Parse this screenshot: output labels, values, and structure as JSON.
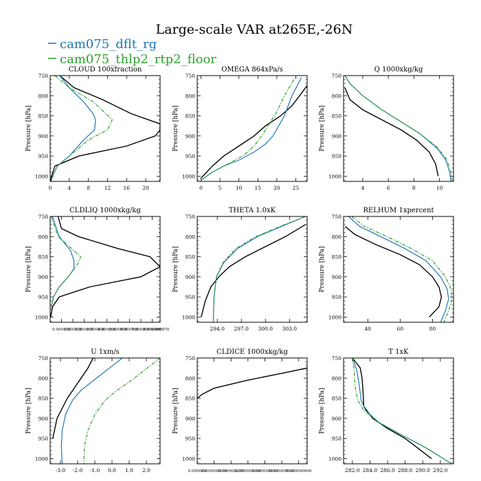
{
  "figure": {
    "title": "Large-scale VAR at265E,-26N",
    "legend": [
      {
        "name": "cam075_dflt_rg",
        "color": "#1f77b4",
        "dash": "solid"
      },
      {
        "name": "cam075_thlp2_rtp2_floor",
        "color": "#2ca02c",
        "dash": "dash-dot"
      }
    ],
    "ref_series_color": "#000000"
  },
  "chart_data": [
    {
      "type": "line",
      "title": "CLOUD  100xfraction",
      "ylabel": "Pressure [hPa]",
      "ylim": [
        1013,
        750
      ],
      "xlim": [
        0,
        23
      ],
      "yticks": [
        750,
        800,
        850,
        900,
        950,
        1000
      ],
      "ytick_labels": [
        "750",
        "800",
        "850",
        "900",
        "950",
        "1000"
      ],
      "xticks": [
        0,
        4,
        8,
        12,
        16,
        20
      ],
      "xtick_labels": [
        "0",
        "4",
        "8",
        "12",
        "16",
        "20"
      ],
      "series": [
        {
          "color": "#000000",
          "dash": "solid",
          "x": [
            2,
            5,
            11,
            17,
            23,
            23,
            22,
            16,
            6,
            1,
            0.3,
            0.1
          ],
          "y": [
            750,
            780,
            810,
            845,
            870,
            885,
            900,
            925,
            950,
            975,
            1000,
            1013
          ]
        },
        {
          "color": "#1f77b4",
          "dash": "solid",
          "x": [
            2,
            4,
            7,
            9,
            9.5,
            9.3,
            7,
            4,
            1.5,
            0.5,
            0.2
          ],
          "y": [
            750,
            780,
            815,
            845,
            860,
            885,
            910,
            950,
            975,
            1000,
            1013
          ]
        },
        {
          "color": "#2ca02c",
          "dash": "dash-dot",
          "x": [
            1,
            4,
            9,
            13,
            12,
            8,
            4,
            1.5,
            0.5,
            0.2
          ],
          "y": [
            750,
            780,
            815,
            860,
            885,
            910,
            950,
            975,
            1000,
            1013
          ]
        }
      ]
    },
    {
      "type": "line",
      "title": "OMEGA  864xPa/s",
      "ylabel": "Pressure [hPa]",
      "ylim": [
        1013,
        750
      ],
      "xlim": [
        -1,
        28
      ],
      "yticks": [
        750,
        800,
        850,
        900,
        950,
        1000
      ],
      "ytick_labels": [
        "750",
        "800",
        "850",
        "900",
        "950",
        "1000"
      ],
      "xticks": [
        0,
        5,
        10,
        15,
        20,
        25
      ],
      "xtick_labels": [
        "0",
        "5",
        "10",
        "15",
        "20",
        "25"
      ],
      "series": [
        {
          "color": "#000000",
          "dash": "solid",
          "x": [
            28,
            26,
            24,
            21,
            17,
            14,
            10,
            6,
            3,
            0
          ],
          "y": [
            775,
            800,
            825,
            850,
            875,
            900,
            925,
            950,
            975,
            1005
          ]
        },
        {
          "color": "#1f77b4",
          "dash": "solid",
          "x": [
            26.5,
            24,
            22,
            20.5,
            19,
            17,
            14,
            10,
            6,
            3,
            0
          ],
          "y": [
            755,
            800,
            850,
            875,
            900,
            920,
            940,
            960,
            975,
            990,
            1010
          ]
        },
        {
          "color": "#2ca02c",
          "dash": "dash-dot",
          "x": [
            24.5,
            22,
            20,
            18,
            16,
            14,
            11,
            7,
            3,
            0
          ],
          "y": [
            760,
            800,
            840,
            870,
            900,
            925,
            950,
            970,
            990,
            1010
          ]
        }
      ]
    },
    {
      "type": "line",
      "title": "Q  1000xkg/kg",
      "ylabel": "Pressure [hPa]",
      "ylim": [
        1013,
        750
      ],
      "xlim": [
        2.5,
        11.1
      ],
      "yticks": [
        750,
        800,
        850,
        900,
        950,
        1000
      ],
      "ytick_labels": [
        "750",
        "800",
        "850",
        "900",
        "950",
        "1000"
      ],
      "xticks": [
        4,
        6,
        8,
        10
      ],
      "xtick_labels": [
        "4",
        "6",
        "8",
        "10"
      ],
      "series": [
        {
          "color": "#000000",
          "dash": "solid",
          "x": [
            2.6,
            3,
            4,
            5.5,
            7,
            8.2,
            9.2,
            9.7,
            9.9
          ],
          "y": [
            780,
            810,
            835,
            860,
            885,
            910,
            940,
            970,
            1000
          ]
        },
        {
          "color": "#1f77b4",
          "dash": "solid",
          "x": [
            2.6,
            3,
            4,
            5.5,
            7,
            8.5,
            9.8,
            10.5,
            10.8,
            10.9
          ],
          "y": [
            750,
            770,
            800,
            835,
            865,
            895,
            930,
            960,
            990,
            1013
          ]
        },
        {
          "color": "#2ca02c",
          "dash": "dash-dot",
          "x": [
            2.6,
            3,
            4,
            5.5,
            7,
            8.5,
            9.9,
            10.6,
            10.9,
            11
          ],
          "y": [
            750,
            770,
            800,
            835,
            865,
            895,
            930,
            960,
            990,
            1013
          ]
        }
      ]
    },
    {
      "type": "line",
      "title": "CLDLIQ  1000xkg/kg",
      "ylabel": "Pressure [hPa]",
      "ylim": [
        1013,
        750
      ],
      "xlim": [
        0,
        0.00097
      ],
      "yticks": [
        750,
        800,
        850,
        900,
        950,
        1000
      ],
      "ytick_labels": [
        "750",
        "800",
        "850",
        "900",
        "950",
        "1000"
      ],
      "xticks": [
        0.0001,
        0.0002,
        0.0003,
        0.0004,
        0.0005,
        0.0006,
        0.0007,
        0.0008,
        0.0009,
        0.00097
      ],
      "xtick_labels": [
        "0.000100",
        "0.000200",
        "0.000300",
        "0.000400",
        "0.000500",
        "0.000600",
        "0.000700",
        "0.000800",
        "0.000900",
        "0.000970"
      ],
      "series": [
        {
          "color": "#000000",
          "dash": "solid",
          "x": [
            7e-05,
            0.0001,
            0.00025,
            0.0006,
            0.00088,
            0.00097,
            0.0008,
            0.00035,
            8e-05,
            2e-05,
            5e-06
          ],
          "y": [
            750,
            780,
            800,
            830,
            850,
            875,
            900,
            925,
            950,
            975,
            1000
          ]
        },
        {
          "color": "#1f77b4",
          "dash": "solid",
          "x": [
            2e-05,
            8e-05,
            0.00018,
            0.00021,
            0.00021,
            0.00016,
            8e-05,
            3e-05,
            1e-05
          ],
          "y": [
            750,
            800,
            835,
            860,
            880,
            900,
            925,
            950,
            975
          ]
        },
        {
          "color": "#2ca02c",
          "dash": "dash-dot",
          "x": [
            1e-05,
            7e-05,
            0.00019,
            0.00027,
            0.00024,
            0.00016,
            8e-05,
            3e-05,
            1e-05
          ],
          "y": [
            750,
            800,
            830,
            850,
            870,
            900,
            925,
            950,
            975
          ]
        }
      ]
    },
    {
      "type": "line",
      "title": "THETA  1.0xK",
      "ylabel": "Pressure [hPa]",
      "ylim": [
        1013,
        750
      ],
      "xlim": [
        291.5,
        305.2
      ],
      "yticks": [
        750,
        800,
        850,
        900,
        950,
        1000
      ],
      "ytick_labels": [
        "750",
        "800",
        "850",
        "900",
        "950",
        "1000"
      ],
      "xticks": [
        294.0,
        297.0,
        300.0,
        303.0
      ],
      "xtick_labels": [
        "294.0",
        "297.0",
        "300.0",
        "303.0"
      ],
      "series": [
        {
          "color": "#000000",
          "dash": "solid",
          "x": [
            305,
            302.5,
            300,
            297.5,
            295.5,
            294.2,
            293.2,
            292.5,
            292.0
          ],
          "y": [
            770,
            800,
            825,
            850,
            875,
            900,
            925,
            960,
            1000
          ]
        },
        {
          "color": "#1f77b4",
          "dash": "solid",
          "x": [
            305,
            302,
            299,
            296.5,
            294.8,
            293.9,
            293.6,
            293.5
          ],
          "y": [
            750,
            775,
            800,
            830,
            865,
            900,
            950,
            1013
          ]
        },
        {
          "color": "#2ca02c",
          "dash": "dash-dot",
          "x": [
            305,
            301.8,
            298.8,
            296.3,
            294.7,
            293.9,
            293.6,
            293.5
          ],
          "y": [
            750,
            775,
            800,
            830,
            865,
            900,
            950,
            1013
          ]
        }
      ]
    },
    {
      "type": "line",
      "title": "RELHUM  1xpercent",
      "ylabel": "Pressure [hPa]",
      "ylim": [
        1013,
        750
      ],
      "xlim": [
        25,
        93
      ],
      "yticks": [
        750,
        800,
        850,
        900,
        950,
        1000
      ],
      "ytick_labels": [
        "750",
        "800",
        "850",
        "900",
        "950",
        "1000"
      ],
      "xticks": [
        40,
        60,
        80
      ],
      "xtick_labels": [
        "40",
        "60",
        "80"
      ],
      "series": [
        {
          "color": "#000000",
          "dash": "solid",
          "x": [
            26,
            32,
            45,
            60,
            72,
            80,
            84,
            85.5,
            84,
            78
          ],
          "y": [
            775,
            795,
            820,
            845,
            870,
            900,
            925,
            950,
            975,
            1000
          ]
        },
        {
          "color": "#1f77b4",
          "dash": "solid",
          "x": [
            28,
            35,
            48,
            63,
            76,
            85,
            89,
            90,
            88,
            85
          ],
          "y": [
            750,
            775,
            800,
            830,
            860,
            900,
            930,
            955,
            985,
            1013
          ]
        },
        {
          "color": "#2ca02c",
          "dash": "dash-dot",
          "x": [
            30,
            38,
            52,
            67,
            80,
            88,
            91.5,
            92,
            90,
            87
          ],
          "y": [
            750,
            775,
            800,
            830,
            860,
            900,
            930,
            955,
            985,
            1013
          ]
        }
      ]
    },
    {
      "type": "line",
      "title": "U  1xm/s",
      "ylabel": "Pressure [hPa]",
      "ylim": [
        1013,
        750
      ],
      "xlim": [
        -3.6,
        2.8
      ],
      "yticks": [
        750,
        800,
        850,
        900,
        950,
        1000
      ],
      "ytick_labels": [
        "750",
        "800",
        "850",
        "900",
        "950",
        "1000"
      ],
      "xticks": [
        -3.0,
        -2.0,
        -1.0,
        0.0,
        1.0,
        2.0
      ],
      "xtick_labels": [
        "-3.0",
        "-2.0",
        "-1.0",
        "0.0",
        "1.0",
        "2.0"
      ],
      "series": [
        {
          "color": "#000000",
          "dash": "solid",
          "x": [
            -1.1,
            -1.4,
            -1.8,
            -2.2,
            -2.6,
            -2.9,
            -3.2,
            -3.45
          ],
          "y": [
            750,
            775,
            800,
            825,
            850,
            875,
            900,
            950
          ]
        },
        {
          "color": "#1f77b4",
          "dash": "solid",
          "x": [
            0.6,
            0,
            -0.6,
            -1.2,
            -1.8,
            -2.3,
            -2.7,
            -2.9,
            -2.95,
            -2.9
          ],
          "y": [
            750,
            770,
            790,
            810,
            830,
            855,
            890,
            930,
            970,
            1013
          ]
        },
        {
          "color": "#2ca02c",
          "dash": "dash-dot",
          "x": [
            2.8,
            2.2,
            1.6,
            1.0,
            0.3,
            -0.4,
            -1.0,
            -1.4,
            -1.6,
            -1.65
          ],
          "y": [
            750,
            770,
            790,
            810,
            830,
            855,
            890,
            930,
            970,
            1013
          ]
        }
      ]
    },
    {
      "type": "line",
      "title": "CLDICE  1000xkg/kg",
      "ylabel": "Pressure [hPa]",
      "ylim": [
        1013,
        750
      ],
      "xlim": [
        0,
        6.5e-07
      ],
      "yticks": [
        750,
        800,
        850,
        900,
        950,
        1000
      ],
      "ytick_labels": [
        "750",
        "800",
        "850",
        "900",
        "950",
        "1000"
      ],
      "xticks": [
        0,
        1e-07,
        2e-07,
        3e-07,
        4e-07,
        5e-07,
        6e-07
      ],
      "xtick_labels": [
        "0.000000",
        "0.000000100",
        "0.000000200",
        "0.000000300",
        "0.000000400",
        "0.000000500",
        "0.000000600"
      ],
      "series": [
        {
          "color": "#000000",
          "dash": "solid",
          "x": [
            6.5e-07,
            5e-07,
            3e-07,
            1e-07,
            3e-08,
            0.0
          ],
          "y": [
            775,
            788,
            805,
            825,
            840,
            850
          ]
        }
      ]
    },
    {
      "type": "line",
      "title": "T  1xK",
      "ylabel": "Pressure [hPa]",
      "ylim": [
        1013,
        750
      ],
      "xlim": [
        281,
        293.5
      ],
      "yticks": [
        750,
        800,
        850,
        900,
        950,
        1000
      ],
      "ytick_labels": [
        "750",
        "800",
        "850",
        "900",
        "950",
        "1000"
      ],
      "xticks": [
        282.0,
        284.0,
        286.0,
        288.0,
        290.0,
        292.0
      ],
      "xtick_labels": [
        "282.0",
        "284.0",
        "286.0",
        "288.0",
        "290.0",
        "292.0"
      ],
      "series": [
        {
          "color": "#000000",
          "dash": "solid",
          "x": [
            282.0,
            282.9,
            283.1,
            283.2,
            283.3,
            284.3,
            286.0,
            288.0,
            291.0
          ],
          "y": [
            750,
            775,
            800,
            830,
            870,
            900,
            925,
            950,
            1000
          ]
        },
        {
          "color": "#1f77b4",
          "dash": "solid",
          "x": [
            282.0,
            282.5,
            282.8,
            283.0,
            283.5,
            285.0,
            287.5,
            290.5,
            293.3
          ],
          "y": [
            750,
            780,
            820,
            855,
            880,
            910,
            940,
            975,
            1013
          ]
        },
        {
          "color": "#2ca02c",
          "dash": "dash-dot",
          "x": [
            282.0,
            282.2,
            282.3,
            282.6,
            283.3,
            285.0,
            287.5,
            290.5,
            293.3
          ],
          "y": [
            750,
            780,
            820,
            855,
            880,
            910,
            940,
            975,
            1013
          ]
        }
      ]
    }
  ]
}
